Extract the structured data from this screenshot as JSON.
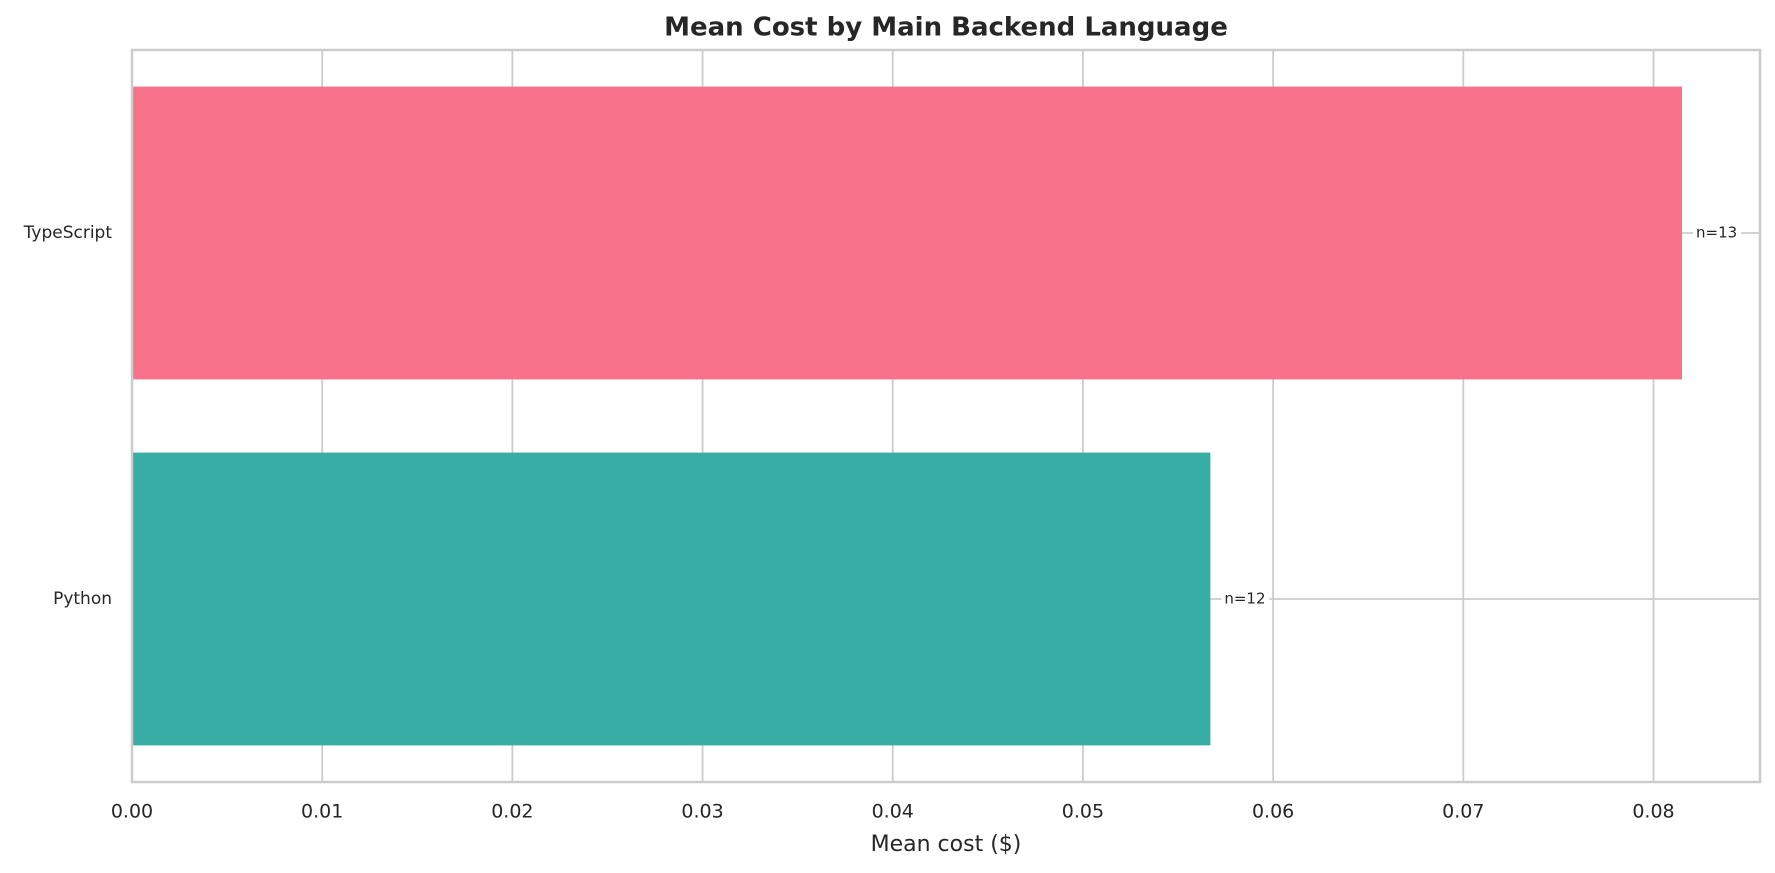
{
  "chart_data": {
    "type": "barh",
    "title": "Mean Cost by Main Backend Language",
    "xlabel": "Mean cost ($)",
    "categories": [
      "TypeScript",
      "Python"
    ],
    "values": [
      0.0815,
      0.0567
    ],
    "colors": [
      "#f7728a",
      "#38ada5"
    ],
    "annotations": [
      "n=13",
      "n=12"
    ],
    "xlim": [
      0,
      0.0856
    ],
    "xticks": [
      {
        "value": 0,
        "label": "0.00"
      },
      {
        "value": 0.01,
        "label": "0.01"
      },
      {
        "value": 0.02,
        "label": "0.02"
      },
      {
        "value": 0.03,
        "label": "0.03"
      },
      {
        "value": 0.04,
        "label": "0.04"
      },
      {
        "value": 0.05,
        "label": "0.05"
      },
      {
        "value": 0.06,
        "label": "0.06"
      },
      {
        "value": 0.07,
        "label": "0.07"
      },
      {
        "value": 0.08,
        "label": "0.08"
      }
    ],
    "grid": true
  }
}
